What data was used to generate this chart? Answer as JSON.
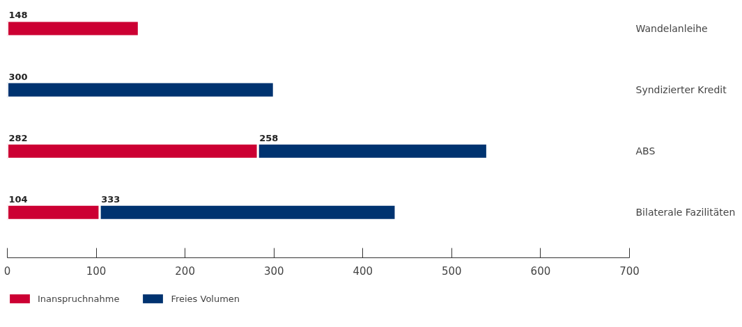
{
  "chart_data": {
    "type": "bar",
    "orientation": "horizontal",
    "stacked": true,
    "categories": [
      "Wandelanleihe",
      "Syndizierter Kredit",
      "ABS",
      "Bilaterale Fazilitäten"
    ],
    "series": [
      {
        "name": "Inanspruchnahme",
        "color": "#cc0033",
        "values": [
          148,
          null,
          282,
          104
        ]
      },
      {
        "name": "Freies Volumen",
        "color": "#003370",
        "values": [
          null,
          300,
          258,
          333
        ]
      }
    ],
    "xlim": [
      0,
      700
    ],
    "xticks": [
      0,
      100,
      200,
      300,
      400,
      500,
      600,
      700
    ],
    "data_labels": true,
    "grid": false,
    "legend": "bottom left"
  }
}
